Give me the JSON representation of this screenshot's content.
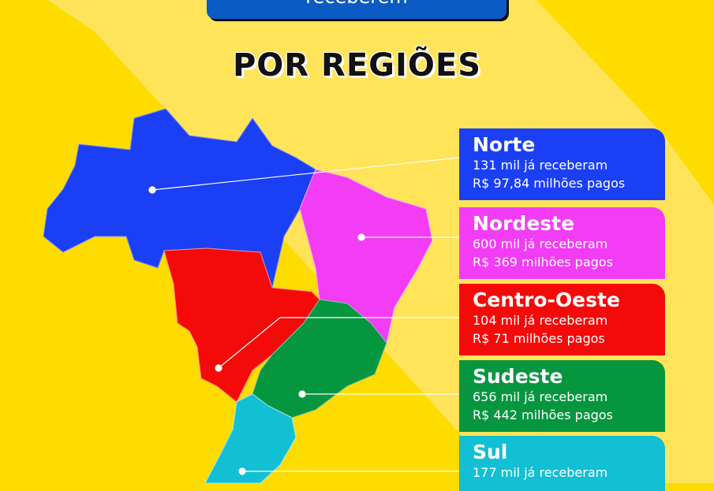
{
  "banner": {
    "text": "receberem"
  },
  "title": "POR REGIÕES",
  "colors": {
    "background": "#FFDC00",
    "band": "#FFE45A",
    "banner": "#0A5BC4"
  },
  "regions": [
    {
      "name": "Norte",
      "received": "131 mil já receberam",
      "paid": "R$ 97,84 milhões pagos",
      "color": "#1A3FF5"
    },
    {
      "name": "Nordeste",
      "received": "600 mil já receberam",
      "paid": "R$ 369 milhões pagos",
      "color": "#F23CF5"
    },
    {
      "name": "Centro-Oeste",
      "received": "104 mil já receberam",
      "paid": "R$ 71 milhões pagos",
      "color": "#F50A0A"
    },
    {
      "name": "Sudeste",
      "received": "656 mil já receberam",
      "paid": "R$ 442 milhões pagos",
      "color": "#079640"
    },
    {
      "name": "Sul",
      "received": "177 mil já receberam",
      "paid": "",
      "color": "#12BFD4"
    }
  ]
}
